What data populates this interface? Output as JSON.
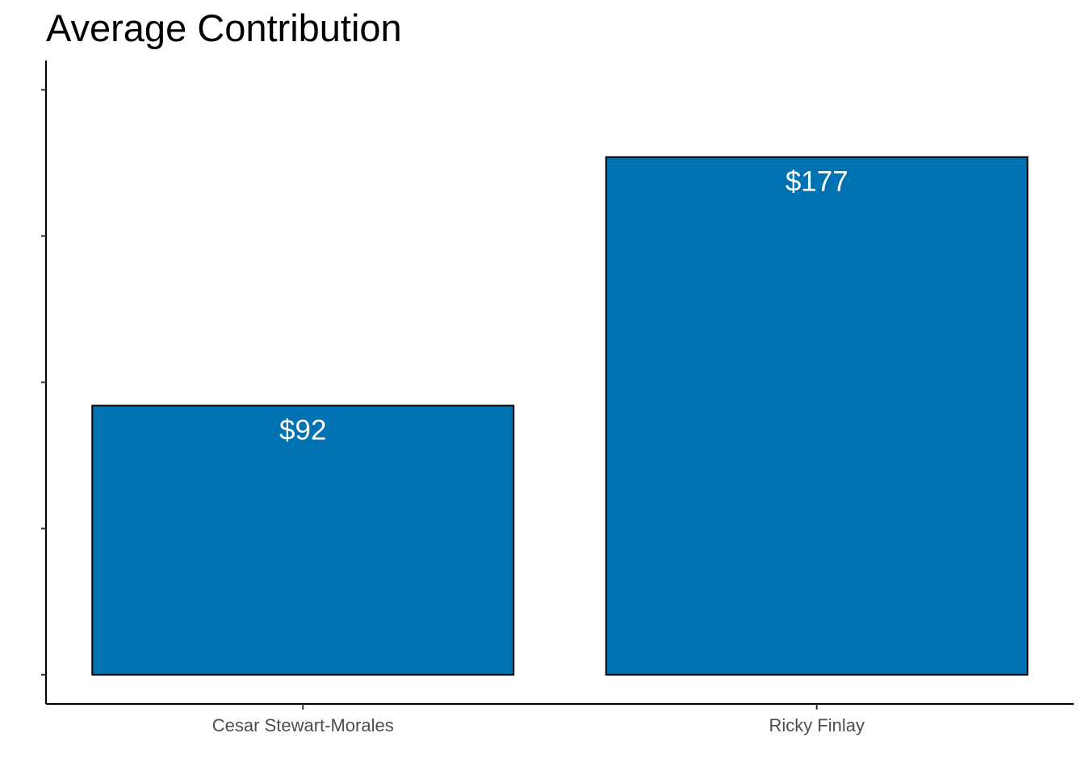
{
  "chart_data": {
    "type": "bar",
    "title": "Average Contribution",
    "xlabel": "",
    "ylabel": "",
    "categories": [
      "Cesar Stewart-Morales",
      "Ricky Finlay"
    ],
    "values": [
      92,
      177
    ],
    "value_labels": [
      "$92",
      "$177"
    ],
    "ylim": [
      -10,
      210
    ],
    "y_ticks": [
      0,
      50,
      100,
      150,
      200
    ],
    "y_tick_labels_shown": false,
    "grid": false,
    "legend": "none",
    "colors": {
      "bar_fill": "#0072B2",
      "bar_outline": "#000000",
      "data_label": "#ffffff"
    }
  }
}
